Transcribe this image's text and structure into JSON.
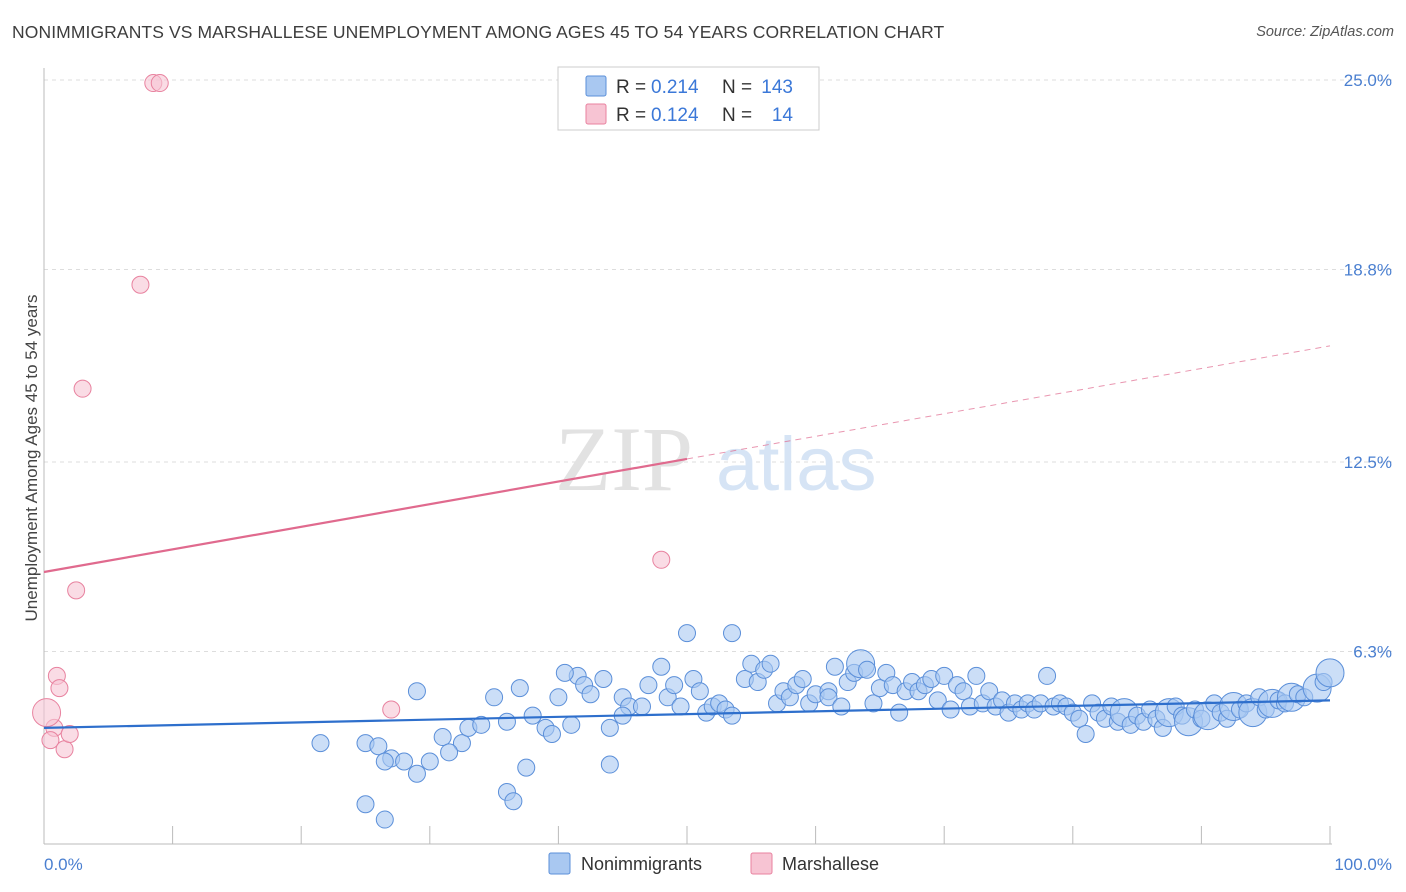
{
  "title": "NONIMMIGRANTS VS MARSHALLESE UNEMPLOYMENT AMONG AGES 45 TO 54 YEARS CORRELATION CHART",
  "source": "Source: ZipAtlas.com",
  "colors": {
    "blue_fill": "#a9c8f1",
    "blue_stroke": "#5b8fd9",
    "blue_line": "#2e6fcc",
    "pink_fill": "#f7c4d3",
    "pink_stroke": "#e8829f",
    "pink_line": "#e06a8e",
    "tick_text": "#4a7fd0"
  },
  "legend": {
    "rows": [
      {
        "r_label": "R =",
        "r_value": "0.214",
        "n_label": "N =",
        "n_value": "143"
      },
      {
        "r_label": "R =",
        "r_value": "0.124",
        "n_label": "N =",
        "n_value": "14"
      }
    ]
  },
  "bottom_legend": [
    "Nonimmigrants",
    "Marshallese"
  ],
  "watermark": {
    "zip": "ZIP",
    "atlas": "atlas"
  },
  "chart_data": {
    "type": "scatter",
    "title": "NONIMMIGRANTS VS MARSHALLESE UNEMPLOYMENT AMONG AGES 45 TO 54 YEARS CORRELATION CHART",
    "ylabel": "Unemployment Among Ages 45 to 54 years",
    "xlabel": "",
    "xlim": [
      0,
      100
    ],
    "ylim": [
      0,
      25.5
    ],
    "x_tick_labels": [
      "0.0%",
      "100.0%"
    ],
    "y_ticks": [
      6.3,
      12.5,
      18.8,
      25.0
    ],
    "y_tick_labels": [
      "6.3%",
      "12.5%",
      "18.8%",
      "25.0%"
    ],
    "grid": true,
    "legend_position": "top-center",
    "series": [
      {
        "name": "Nonimmigrants",
        "r": 0.214,
        "n": 143,
        "trend": {
          "x": [
            0,
            100
          ],
          "y": [
            3.8,
            4.7
          ],
          "style": "solid"
        },
        "points": [
          [
            21.5,
            3.3,
            1
          ],
          [
            25,
            3.3,
            1
          ],
          [
            26,
            3.2,
            1
          ],
          [
            27,
            2.8,
            1
          ],
          [
            26.5,
            2.7,
            1
          ],
          [
            28,
            2.7,
            1
          ],
          [
            29,
            2.3,
            1
          ],
          [
            30,
            2.7,
            1
          ],
          [
            31,
            3.5,
            1
          ],
          [
            32.5,
            3.3,
            1
          ],
          [
            31.5,
            3.0,
            1
          ],
          [
            33,
            3.8,
            1
          ],
          [
            25,
            1.3,
            1
          ],
          [
            26.5,
            0.8,
            1
          ],
          [
            36,
            1.7,
            1
          ],
          [
            36.5,
            1.4,
            1
          ],
          [
            37.5,
            2.5,
            1
          ],
          [
            44,
            2.6,
            1
          ],
          [
            29,
            5.0,
            1
          ],
          [
            34,
            3.9,
            1
          ],
          [
            35,
            4.8,
            1
          ],
          [
            37,
            5.1,
            1
          ],
          [
            36,
            4.0,
            1
          ],
          [
            38,
            4.2,
            1
          ],
          [
            39,
            3.8,
            1
          ],
          [
            39.5,
            3.6,
            1
          ],
          [
            40,
            4.8,
            1
          ],
          [
            41.5,
            5.5,
            1
          ],
          [
            42,
            5.2,
            1
          ],
          [
            40.5,
            5.6,
            1
          ],
          [
            42.5,
            4.9,
            1
          ],
          [
            43.5,
            5.4,
            1
          ],
          [
            41,
            3.9,
            1
          ],
          [
            44,
            3.8,
            1
          ],
          [
            45,
            4.8,
            1
          ],
          [
            45.5,
            4.5,
            1
          ],
          [
            45,
            4.2,
            1
          ],
          [
            46.5,
            4.5,
            1
          ],
          [
            47,
            5.2,
            1
          ],
          [
            48,
            5.8,
            1
          ],
          [
            48.5,
            4.8,
            1
          ],
          [
            49,
            5.2,
            1
          ],
          [
            49.5,
            4.5,
            1
          ],
          [
            50,
            6.9,
            1
          ],
          [
            50.5,
            5.4,
            1
          ],
          [
            51,
            5.0,
            1
          ],
          [
            51.5,
            4.3,
            1
          ],
          [
            52,
            4.5,
            1
          ],
          [
            52.5,
            4.6,
            1
          ],
          [
            53,
            4.4,
            1
          ],
          [
            53.5,
            6.9,
            1
          ],
          [
            53.5,
            4.2,
            1
          ],
          [
            54.5,
            5.4,
            1
          ],
          [
            55,
            5.9,
            1
          ],
          [
            55.5,
            5.3,
            1
          ],
          [
            56,
            5.7,
            1
          ],
          [
            56.5,
            5.9,
            1
          ],
          [
            57,
            4.6,
            1
          ],
          [
            57.5,
            5.0,
            1
          ],
          [
            58,
            4.8,
            1
          ],
          [
            58.5,
            5.2,
            1
          ],
          [
            59,
            5.4,
            1
          ],
          [
            59.5,
            4.6,
            1
          ],
          [
            60,
            4.9,
            1
          ],
          [
            61,
            5.0,
            1
          ],
          [
            61,
            4.8,
            1
          ],
          [
            61.5,
            5.8,
            1
          ],
          [
            62,
            4.5,
            1
          ],
          [
            62.5,
            5.3,
            1
          ],
          [
            63,
            5.6,
            1
          ],
          [
            63.5,
            5.9,
            2
          ],
          [
            64,
            5.7,
            1
          ],
          [
            64.5,
            4.6,
            1
          ],
          [
            65,
            5.1,
            1
          ],
          [
            65.5,
            5.6,
            1
          ],
          [
            66,
            5.2,
            1
          ],
          [
            66.5,
            4.3,
            1
          ],
          [
            67,
            5.0,
            1
          ],
          [
            67.5,
            5.3,
            1
          ],
          [
            68,
            5.0,
            1
          ],
          [
            68.5,
            5.2,
            1
          ],
          [
            69,
            5.4,
            1
          ],
          [
            69.5,
            4.7,
            1
          ],
          [
            70,
            5.5,
            1
          ],
          [
            70.5,
            4.4,
            1
          ],
          [
            71,
            5.2,
            1
          ],
          [
            71.5,
            5.0,
            1
          ],
          [
            72,
            4.5,
            1
          ],
          [
            72.5,
            5.5,
            1
          ],
          [
            73,
            4.6,
            1
          ],
          [
            73.5,
            5.0,
            1
          ],
          [
            74,
            4.5,
            1
          ],
          [
            74.5,
            4.7,
            1
          ],
          [
            75,
            4.3,
            1
          ],
          [
            75.5,
            4.6,
            1
          ],
          [
            76,
            4.4,
            1
          ],
          [
            76.5,
            4.6,
            1
          ],
          [
            77,
            4.4,
            1
          ],
          [
            77.5,
            4.6,
            1
          ],
          [
            78,
            5.5,
            1
          ],
          [
            78.5,
            4.5,
            1
          ],
          [
            79,
            4.6,
            1
          ],
          [
            79.5,
            4.5,
            1
          ],
          [
            80,
            4.3,
            1
          ],
          [
            80.5,
            4.1,
            1
          ],
          [
            81,
            3.6,
            1
          ],
          [
            81.5,
            4.6,
            1
          ],
          [
            82,
            4.3,
            1
          ],
          [
            82.5,
            4.1,
            1
          ],
          [
            83,
            4.5,
            1
          ],
          [
            83.5,
            4.0,
            1
          ],
          [
            84,
            4.3,
            2
          ],
          [
            84.5,
            3.9,
            1
          ],
          [
            85,
            4.2,
            1
          ],
          [
            85.5,
            4.0,
            1
          ],
          [
            86,
            4.4,
            1
          ],
          [
            86.5,
            4.1,
            1
          ],
          [
            87,
            3.8,
            1
          ],
          [
            87.5,
            4.3,
            2
          ],
          [
            88,
            4.5,
            1
          ],
          [
            88.5,
            4.2,
            1
          ],
          [
            89,
            4.0,
            2
          ],
          [
            89.5,
            4.4,
            1
          ],
          [
            90,
            4.1,
            1
          ],
          [
            90.5,
            4.2,
            2
          ],
          [
            91,
            4.6,
            1
          ],
          [
            91.5,
            4.3,
            1
          ],
          [
            92,
            4.1,
            1
          ],
          [
            92.5,
            4.5,
            2
          ],
          [
            93,
            4.4,
            1
          ],
          [
            93.5,
            4.6,
            1
          ],
          [
            94,
            4.3,
            2
          ],
          [
            94.5,
            4.8,
            1
          ],
          [
            95,
            4.4,
            1
          ],
          [
            95.5,
            4.6,
            2
          ],
          [
            96,
            4.7,
            1
          ],
          [
            96.5,
            4.6,
            1
          ],
          [
            97,
            4.8,
            2
          ],
          [
            97.5,
            4.9,
            1
          ],
          [
            98,
            4.8,
            1
          ],
          [
            99,
            5.1,
            2
          ],
          [
            99.5,
            5.3,
            1
          ],
          [
            100,
            5.6,
            2
          ]
        ]
      },
      {
        "name": "Marshallese",
        "r": 0.124,
        "n": 14,
        "trend": {
          "x": [
            0,
            100
          ],
          "y": [
            8.9,
            16.3
          ],
          "style": "solid-then-dashed",
          "solid_until_x": 50
        },
        "points": [
          [
            8.5,
            24.9,
            1
          ],
          [
            9,
            24.9,
            1
          ],
          [
            7.5,
            18.3,
            1
          ],
          [
            3,
            14.9,
            1
          ],
          [
            2.5,
            8.3,
            1
          ],
          [
            48,
            9.3,
            1
          ],
          [
            27,
            4.4,
            1
          ],
          [
            1,
            5.5,
            1
          ],
          [
            1.2,
            5.1,
            1
          ],
          [
            0.8,
            3.8,
            1
          ],
          [
            0.5,
            3.4,
            1
          ],
          [
            1.6,
            3.1,
            1
          ],
          [
            2,
            3.6,
            1
          ],
          [
            0.2,
            4.3,
            2
          ]
        ]
      }
    ]
  }
}
